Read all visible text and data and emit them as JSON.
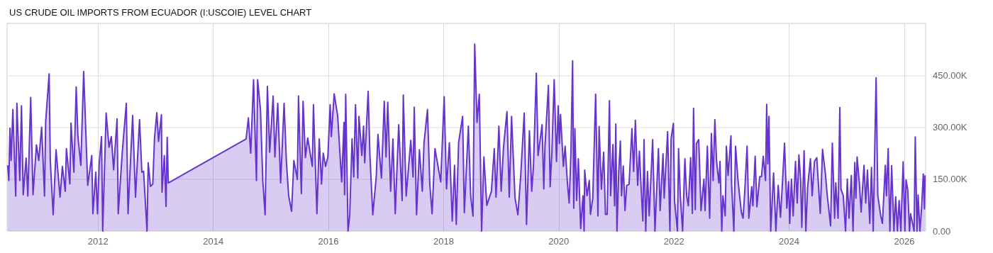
{
  "chart_data": {
    "type": "area",
    "title": "US CRUDE OIL IMPORTS FROM ECUADOR (I:USCOIE) LEVEL CHART",
    "xlim": [
      2010.42,
      2026.37
    ],
    "xticks": [
      2012,
      2014,
      2016,
      2018,
      2020,
      2022,
      2024,
      2026
    ],
    "ylim": [
      0,
      600
    ],
    "yticks": [
      {
        "value": 0,
        "label": "0.00"
      },
      {
        "value": 150,
        "label": "150.00K"
      },
      {
        "value": 300,
        "label": "300.00K"
      },
      {
        "value": 450,
        "label": "450.00K"
      }
    ],
    "grid": true,
    "marker": "none",
    "line_style": "solid",
    "series": [
      {
        "color": "#6633cc",
        "x": [
          2010.43,
          2010.45,
          2010.47,
          2010.49,
          2010.52,
          2010.57,
          2010.59,
          2010.64,
          2010.67,
          2010.7,
          2010.75,
          2010.78,
          2010.83,
          2010.87,
          2010.93,
          2010.97,
          2011.02,
          2011.07,
          2011.09,
          2011.15,
          2011.17,
          2011.22,
          2011.27,
          2011.34,
          2011.38,
          2011.43,
          2011.45,
          2011.51,
          2011.53,
          2011.58,
          2011.62,
          2011.65,
          2011.7,
          2011.75,
          2011.82,
          2011.89,
          2011.91,
          2011.96,
          2011.99,
          2012.02,
          2012.06,
          2012.08,
          2012.14,
          2012.19,
          2012.23,
          2012.27,
          2012.33,
          2012.35,
          2012.42,
          2012.49,
          2012.52,
          2012.6,
          2012.65,
          2012.72,
          2012.76,
          2012.79,
          2012.85,
          2012.87,
          2012.91,
          2012.95,
          2012.98,
          2013.02,
          2013.05,
          2013.1,
          2013.11,
          2013.15,
          2013.18,
          2013.2,
          2013.22,
          2014.57,
          2014.61,
          2014.65,
          2014.7,
          2014.75,
          2014.77,
          2014.82,
          2014.86,
          2014.9,
          2014.94,
          2014.98,
          2015.04,
          2015.07,
          2015.12,
          2015.17,
          2015.23,
          2015.27,
          2015.31,
          2015.36,
          2015.4,
          2015.46,
          2015.48,
          2015.53,
          2015.56,
          2015.6,
          2015.64,
          2015.72,
          2015.74,
          2015.8,
          2015.84,
          2015.88,
          2015.91,
          2015.95,
          2015.99,
          2016.03,
          2016.05,
          2016.1,
          2016.16,
          2016.23,
          2016.27,
          2016.28,
          2016.3,
          2016.34,
          2016.37,
          2016.41,
          2016.44,
          2016.47,
          2016.51,
          2016.53,
          2016.58,
          2016.61,
          2016.63,
          2016.69,
          2016.72,
          2016.77,
          2016.83,
          2016.86,
          2016.92,
          2016.97,
          2017.0,
          2017.03,
          2017.08,
          2017.12,
          2017.16,
          2017.22,
          2017.28,
          2017.3,
          2017.35,
          2017.43,
          2017.47,
          2017.49,
          2017.53,
          2017.58,
          2017.63,
          2017.66,
          2017.72,
          2017.76,
          2017.8,
          2017.85,
          2017.95,
          2018.01,
          2018.05,
          2018.1,
          2018.15,
          2018.19,
          2018.22,
          2018.26,
          2018.33,
          2018.36,
          2018.43,
          2018.47,
          2018.51,
          2018.54,
          2018.58,
          2018.62,
          2018.66,
          2018.7,
          2018.75,
          2018.83,
          2018.88,
          2018.91,
          2018.96,
          2019.0,
          2019.04,
          2019.1,
          2019.14,
          2019.18,
          2019.24,
          2019.29,
          2019.34,
          2019.4,
          2019.44,
          2019.49,
          2019.53,
          2019.56,
          2019.61,
          2019.64,
          2019.71,
          2019.74,
          2019.76,
          2019.82,
          2019.85,
          2019.88,
          2019.92,
          2019.96,
          2019.99,
          2020.01,
          2020.03,
          2020.08,
          2020.11,
          2020.15,
          2020.18,
          2020.21,
          2020.24,
          2020.26,
          2020.28,
          2020.31,
          2020.34,
          2020.38,
          2020.42,
          2020.44,
          2020.45,
          2020.49,
          2020.53,
          2020.55,
          2020.59,
          2020.64,
          2020.68,
          2020.7,
          2020.74,
          2020.78,
          2020.81,
          2020.84,
          2020.88,
          2020.9,
          2020.94,
          2020.97,
          2020.99,
          2021.01,
          2021.04,
          2021.07,
          2021.09,
          2021.12,
          2021.15,
          2021.18,
          2021.22,
          2021.27,
          2021.3,
          2021.33,
          2021.37,
          2021.4,
          2021.43,
          2021.46,
          2021.48,
          2021.51,
          2021.54,
          2021.57,
          2021.63,
          2021.67,
          2021.73,
          2021.76,
          2021.81,
          2021.83,
          2021.89,
          2021.93,
          2021.95,
          2021.99,
          2022.01,
          2022.06,
          2022.08,
          2022.11,
          2022.15,
          2022.19,
          2022.22,
          2022.25,
          2022.29,
          2022.32,
          2022.34,
          2022.37,
          2022.39,
          2022.43,
          2022.47,
          2022.52,
          2022.54,
          2022.58,
          2022.62,
          2022.65,
          2022.68,
          2022.71,
          2022.74,
          2022.78,
          2022.8,
          2022.83,
          2022.85,
          2022.89,
          2022.91,
          2022.94,
          2022.99,
          2023.0,
          2023.04,
          2023.07,
          2023.11,
          2023.17,
          2023.2,
          2023.23,
          2023.27,
          2023.3,
          2023.35,
          2023.37,
          2023.41,
          2023.44,
          2023.49,
          2023.52,
          2023.55,
          2023.59,
          2023.61,
          2023.63,
          2023.65,
          2023.68,
          2023.73,
          2023.77,
          2023.81,
          2023.85,
          2023.88,
          2023.92,
          2023.96,
          2023.99,
          2024.01,
          2024.04,
          2024.07,
          2024.11,
          2024.14,
          2024.17,
          2024.2,
          2024.22,
          2024.26,
          2024.29,
          2024.32,
          2024.37,
          2024.4,
          2024.44,
          2024.48,
          2024.54,
          2024.58,
          2024.63,
          2024.66,
          2024.72,
          2024.75,
          2024.79,
          2024.81,
          2024.85,
          2024.88,
          2024.9,
          2024.94,
          2024.98,
          2025.01,
          2025.04,
          2025.08,
          2025.11,
          2025.14,
          2025.16,
          2025.18,
          2025.22,
          2025.25,
          2025.3,
          2025.33,
          2025.36,
          2025.4,
          2025.43,
          2025.46,
          2025.51,
          2025.54,
          2025.59,
          2025.62,
          2025.67,
          2025.69,
          2025.72,
          2025.75,
          2025.78,
          2025.82,
          2025.85,
          2025.88,
          2025.91,
          2025.94,
          2025.98,
          2026.01,
          2026.03,
          2026.06,
          2026.09,
          2026.11,
          2026.17,
          2026.19,
          2026.22,
          2026.24,
          2026.27,
          2026.3,
          2026.33,
          2026.35,
          2026.36
        ],
        "values": [
          190,
          146,
          297,
          204,
          351,
          101,
          369,
          146,
          362,
          105,
          211,
          101,
          386,
          105,
          249,
          204,
          300,
          101,
          317,
          454,
          204,
          47,
          235,
          98,
          187,
          115,
          238,
          136,
          312,
          170,
          416,
          273,
          190,
          461,
          132,
          218,
          50,
          170,
          50,
          197,
          273,
          0,
          341,
          242,
          273,
          177,
          324,
          50,
          228,
          369,
          50,
          334,
          98,
          322,
          170,
          173,
          0,
          197,
          129,
          136,
          269,
          342,
          259,
          336,
          112,
          218,
          71,
          271,
          139,
          266,
          327,
          225,
          437,
          146,
          437,
          351,
          146,
          47,
          418,
          228,
          390,
          214,
          369,
          139,
          369,
          201,
          101,
          57,
          204,
          149,
          390,
          108,
          375,
          212,
          269,
          187,
          365,
          50,
          266,
          136,
          225,
          187,
          214,
          365,
          273,
          396,
          334,
          142,
          314,
          105,
          395,
          0,
          47,
          266,
          156,
          365,
          153,
          331,
          218,
          303,
          197,
          404,
          221,
          47,
          156,
          279,
          153,
          375,
          214,
          372,
          115,
          266,
          50,
          307,
          88,
          393,
          101,
          262,
          156,
          358,
          47,
          235,
          115,
          255,
          351,
          136,
          50,
          238,
          142,
          388,
          122,
          255,
          29,
          190,
          19,
          255,
          331,
          53,
          303,
          101,
          43,
          540,
          314,
          395,
          0,
          214,
          74,
          115,
          238,
          98,
          303,
          115,
          242,
          345,
          98,
          331,
          96,
          47,
          163,
          341,
          19,
          290,
          115,
          187,
          456,
          218,
          307,
          122,
          245,
          421,
          128,
          227,
          437,
          201,
          362,
          253,
          337,
          187,
          245,
          139,
          81,
          220,
          492,
          66,
          296,
          88,
          209,
          7,
          102,
          0,
          176,
          102,
          146,
          48,
          95,
          395,
          44,
          302,
          121,
          228,
          48,
          48,
          377,
          102,
          250,
          73,
          309,
          0,
          168,
          260,
          102,
          188,
          59,
          132,
          135,
          296,
          172,
          320,
          132,
          231,
          124,
          29,
          264,
          0,
          172,
          44,
          264,
          0,
          238,
          59,
          223,
          95,
          287,
          0,
          267,
          311,
          88,
          0,
          238,
          102,
          0,
          209,
          102,
          73,
          212,
          51,
          355,
          62,
          253,
          264,
          59,
          150,
          59,
          245,
          37,
          282,
          146,
          322,
          201,
          139,
          201,
          0,
          102,
          44,
          245,
          161,
          275,
          139,
          0,
          245,
          150,
          55,
          37,
          117,
          245,
          37,
          128,
          73,
          216,
          70,
          157,
          157,
          216,
          146,
          366,
          194,
          331,
          0,
          168,
          0,
          132,
          40,
          128,
          254,
          66,
          143,
          22,
          150,
          44,
          201,
          81,
          220,
          146,
          11,
          232,
          0,
          124,
          209,
          102,
          201,
          212,
          51,
          236,
          165,
          106,
          15,
          254,
          37,
          139,
          37,
          357,
          121,
          102,
          0,
          150,
          37,
          160,
          0,
          198,
          95,
          214,
          139,
          55,
          190,
          81,
          176,
          22,
          184,
          0,
          443,
          102,
          44,
          22,
          190,
          102,
          238,
          0,
          189,
          0,
          99,
          0,
          88,
          0,
          200,
          0,
          148,
          119,
          0,
          50,
          0,
          272,
          0,
          104,
          0,
          66,
          165,
          64,
          161
        ]
      }
    ]
  }
}
